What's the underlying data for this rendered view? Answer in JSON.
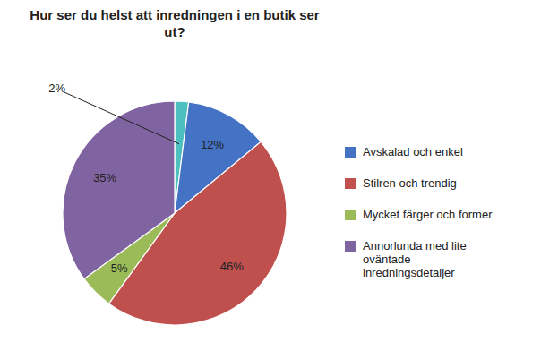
{
  "chart_data": {
    "type": "pie",
    "title": "Hur ser du helst att inredningen i en butik ser\nut?",
    "categories": [
      null,
      "Avskalad och enkel",
      "Stilren och trendig",
      "Mycket färger och former",
      "Annorlunda med lite\noväntade\ninredningsdetaljer"
    ],
    "values": [
      2,
      12,
      46,
      5,
      35
    ],
    "value_labels": [
      "2%",
      "12%",
      "46%",
      "5%",
      "35%"
    ],
    "colors": [
      "#4DBFBF",
      "#4472C4",
      "#C0504D",
      "#9BBB59",
      "#8064A2"
    ],
    "data_labels": true,
    "legend": "right"
  }
}
